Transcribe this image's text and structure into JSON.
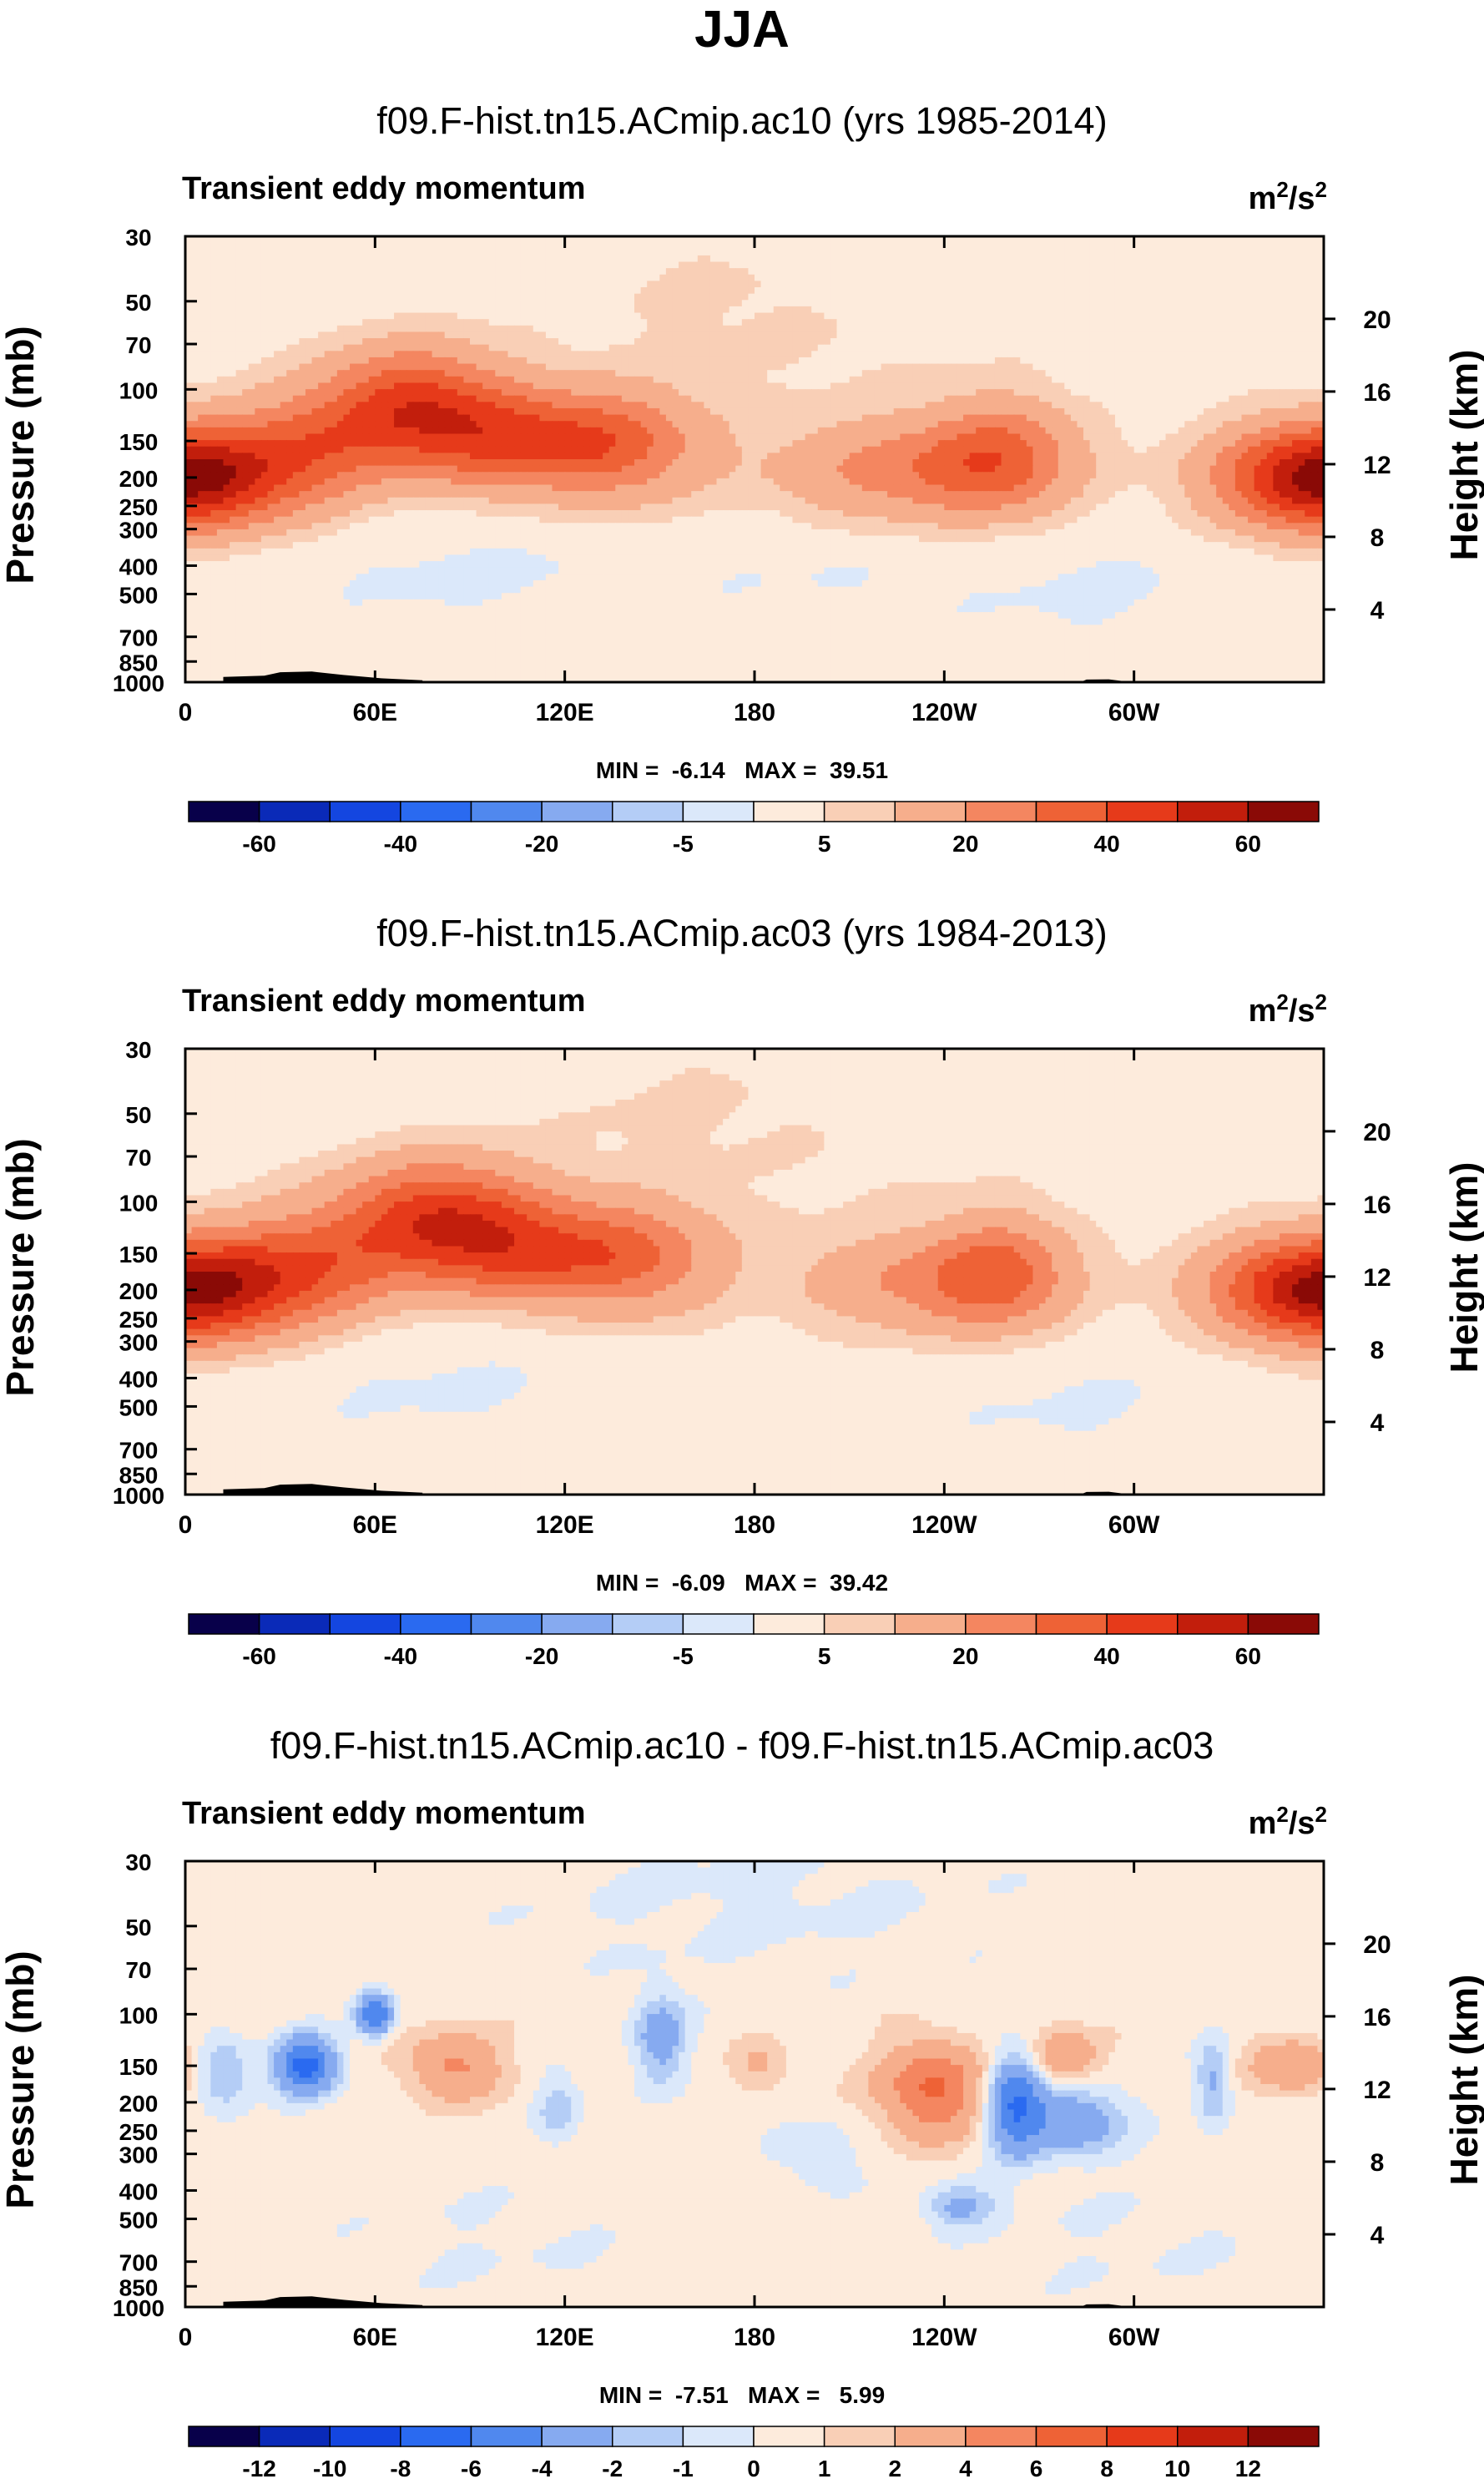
{
  "figure": {
    "season_title": "JJA"
  },
  "palette": {
    "full": [
      "#08004a",
      "#0a2ab8",
      "#1446e0",
      "#2a6af0",
      "#5088ee",
      "#86aaf0",
      "#b4cdf6",
      "#dbe8fa",
      "#fdebdc",
      "#f9cfb6",
      "#f6ae8c",
      "#f48660",
      "#ee6236",
      "#e63a1a",
      "#c21e0c",
      "#8a0a06"
    ],
    "diff": [
      "#08004a",
      "#0a2ab8",
      "#1446e0",
      "#2a6af0",
      "#5088ee",
      "#86aaf0",
      "#b4cdf6",
      "#dbe8fa",
      "#fdebdc",
      "#f9cfb6",
      "#f6ae8c",
      "#f48660",
      "#ee6236",
      "#e63a1a",
      "#c21e0c",
      "#8a0a06"
    ],
    "topography": "#000000"
  },
  "chart_data": [
    {
      "id": "panel1",
      "type": "heatmap",
      "title": "f09.F-hist.tn15.ACmip.ac10 (yrs 1985-2014)",
      "subtitle_left": "Transient eddy momentum",
      "units_base": "m",
      "units_sup1": "2",
      "units_mid": "/s",
      "units_sup2": "2",
      "ylabel": "Pressure (mb)",
      "y2label": "Height (km)",
      "xticks": [
        "0",
        "60E",
        "120E",
        "180",
        "120W",
        "60W"
      ],
      "xtick_lons": [
        0,
        60,
        120,
        180,
        240,
        300
      ],
      "xlim": [
        0,
        360
      ],
      "yticks": [
        "30",
        "50",
        "70",
        "100",
        "150",
        "200",
        "250",
        "300",
        "400",
        "500",
        "700",
        "850",
        "1000"
      ],
      "ytick_values": [
        30,
        50,
        70,
        100,
        150,
        200,
        250,
        300,
        400,
        500,
        700,
        850,
        1000
      ],
      "ylim": [
        1000,
        30
      ],
      "y2ticks": [
        "20",
        "16",
        "12",
        "8",
        "4"
      ],
      "y2tick_values": [
        20,
        16,
        12,
        8,
        4
      ],
      "stats": "MIN =  -6.14   MAX =  39.51",
      "min": -6.14,
      "max": 39.51,
      "levels": [
        -60,
        -50,
        -40,
        -30,
        -20,
        -10,
        -5,
        0,
        5,
        10,
        20,
        30,
        40,
        50,
        60
      ],
      "colorbar_labels": [
        "-60",
        "-40",
        "-20",
        "-5",
        "5",
        "20",
        "40",
        "60"
      ],
      "colorbar_label_levels": [
        -60,
        -40,
        -20,
        -5,
        5,
        20,
        40,
        60
      ],
      "features": [
        {
          "lon": 0,
          "p": 200,
          "amp": 32,
          "slon": 22,
          "sp": 0.28
        },
        {
          "lon": 360,
          "p": 200,
          "amp": 32,
          "slon": 22,
          "sp": 0.28
        },
        {
          "lon": 40,
          "p": 160,
          "amp": 24,
          "slon": 18,
          "sp": 0.3
        },
        {
          "lon": 72,
          "p": 110,
          "amp": 36,
          "slon": 20,
          "sp": 0.3
        },
        {
          "lon": 108,
          "p": 150,
          "amp": 38,
          "slon": 28,
          "sp": 0.27
        },
        {
          "lon": 140,
          "p": 160,
          "amp": 14,
          "slon": 18,
          "sp": 0.33
        },
        {
          "lon": 228,
          "p": 190,
          "amp": 22,
          "slon": 28,
          "sp": 0.27
        },
        {
          "lon": 258,
          "p": 170,
          "amp": 26,
          "slon": 16,
          "sp": 0.3
        },
        {
          "lon": 160,
          "p": 45,
          "amp": 2.8,
          "slon": 34,
          "sp": 0.5
        },
        {
          "lon": 220,
          "p": 60,
          "amp": 2.4,
          "slon": 40,
          "sp": 0.6
        },
        {
          "lon": 90,
          "p": 420,
          "amp": -3.2,
          "slon": 50,
          "sp": 0.35
        },
        {
          "lon": 290,
          "p": 500,
          "amp": -3.0,
          "slon": 40,
          "sp": 0.4
        },
        {
          "lon": 200,
          "p": 420,
          "amp": -2.0,
          "slon": 30,
          "sp": 0.3
        },
        {
          "lon": 260,
          "p": 40,
          "amp": -2.5,
          "slon": 60,
          "sp": 0.35
        }
      ],
      "base": 2.5
    },
    {
      "id": "panel2",
      "type": "heatmap",
      "title": "f09.F-hist.tn15.ACmip.ac03 (yrs 1984-2013)",
      "subtitle_left": "Transient eddy momentum",
      "units_base": "m",
      "units_sup1": "2",
      "units_mid": "/s",
      "units_sup2": "2",
      "ylabel": "Pressure (mb)",
      "y2label": "Height (km)",
      "xticks": [
        "0",
        "60E",
        "120E",
        "180",
        "120W",
        "60W"
      ],
      "xtick_lons": [
        0,
        60,
        120,
        180,
        240,
        300
      ],
      "xlim": [
        0,
        360
      ],
      "yticks": [
        "30",
        "50",
        "70",
        "100",
        "150",
        "200",
        "250",
        "300",
        "400",
        "500",
        "700",
        "850",
        "1000"
      ],
      "ytick_values": [
        30,
        50,
        70,
        100,
        150,
        200,
        250,
        300,
        400,
        500,
        700,
        850,
        1000
      ],
      "ylim": [
        1000,
        30
      ],
      "y2ticks": [
        "20",
        "16",
        "12",
        "8",
        "4"
      ],
      "y2tick_values": [
        20,
        16,
        12,
        8,
        4
      ],
      "stats": "MIN =  -6.09   MAX =  39.42",
      "min": -6.09,
      "max": 39.42,
      "levels": [
        -60,
        -50,
        -40,
        -30,
        -20,
        -10,
        -5,
        0,
        5,
        10,
        20,
        30,
        40,
        50,
        60
      ],
      "colorbar_labels": [
        "-60",
        "-40",
        "-20",
        "-5",
        "5",
        "20",
        "40",
        "60"
      ],
      "colorbar_label_levels": [
        -60,
        -40,
        -20,
        -5,
        5,
        20,
        40,
        60
      ],
      "features": [
        {
          "lon": 0,
          "p": 200,
          "amp": 32,
          "slon": 24,
          "sp": 0.28
        },
        {
          "lon": 360,
          "p": 200,
          "amp": 30,
          "slon": 22,
          "sp": 0.28
        },
        {
          "lon": 40,
          "p": 165,
          "amp": 26,
          "slon": 20,
          "sp": 0.3
        },
        {
          "lon": 80,
          "p": 110,
          "amp": 38,
          "slon": 22,
          "sp": 0.3
        },
        {
          "lon": 112,
          "p": 150,
          "amp": 34,
          "slon": 28,
          "sp": 0.27
        },
        {
          "lon": 145,
          "p": 160,
          "amp": 14,
          "slon": 18,
          "sp": 0.33
        },
        {
          "lon": 232,
          "p": 190,
          "amp": 18,
          "slon": 26,
          "sp": 0.27
        },
        {
          "lon": 258,
          "p": 175,
          "amp": 26,
          "slon": 15,
          "sp": 0.3
        },
        {
          "lon": 150,
          "p": 45,
          "amp": 2.8,
          "slon": 34,
          "sp": 0.5
        },
        {
          "lon": 220,
          "p": 55,
          "amp": 2.4,
          "slon": 40,
          "sp": 0.6
        },
        {
          "lon": 80,
          "p": 420,
          "amp": -3.0,
          "slon": 45,
          "sp": 0.35
        },
        {
          "lon": 280,
          "p": 500,
          "amp": -2.8,
          "slon": 40,
          "sp": 0.4
        },
        {
          "lon": 270,
          "p": 40,
          "amp": -2.5,
          "slon": 60,
          "sp": 0.35
        }
      ],
      "base": 2.5
    },
    {
      "id": "panel3",
      "type": "heatmap",
      "title": "f09.F-hist.tn15.ACmip.ac10 - f09.F-hist.tn15.ACmip.ac03",
      "subtitle_left": "Transient eddy momentum",
      "units_base": "m",
      "units_sup1": "2",
      "units_mid": "/s",
      "units_sup2": "2",
      "ylabel": "Pressure (mb)",
      "y2label": "Height (km)",
      "xticks": [
        "0",
        "60E",
        "120E",
        "180",
        "120W",
        "60W"
      ],
      "xtick_lons": [
        0,
        60,
        120,
        180,
        240,
        300
      ],
      "xlim": [
        0,
        360
      ],
      "yticks": [
        "30",
        "50",
        "70",
        "100",
        "150",
        "200",
        "250",
        "300",
        "400",
        "500",
        "700",
        "850",
        "1000"
      ],
      "ytick_values": [
        30,
        50,
        70,
        100,
        150,
        200,
        250,
        300,
        400,
        500,
        700,
        850,
        1000
      ],
      "ylim": [
        1000,
        30
      ],
      "y2ticks": [
        "20",
        "16",
        "12",
        "8",
        "4"
      ],
      "y2tick_values": [
        20,
        16,
        12,
        8,
        4
      ],
      "stats": "MIN =  -7.51   MAX =   5.99",
      "min": -7.51,
      "max": 5.99,
      "levels": [
        -12,
        -10,
        -8,
        -6,
        -4,
        -2,
        -1,
        0,
        1,
        2,
        4,
        6,
        8,
        10,
        12
      ],
      "colorbar_labels": [
        "-12",
        "-10",
        "-8",
        "-6",
        "-4",
        "-2",
        "-1",
        "0",
        "1",
        "2",
        "4",
        "6",
        "8",
        "10",
        "12"
      ],
      "colorbar_label_levels": [
        -12,
        -10,
        -8,
        -6,
        -4,
        -2,
        -1,
        0,
        1,
        2,
        4,
        6,
        8,
        10,
        12
      ],
      "features": [
        {
          "lon": 12,
          "p": 160,
          "amp": -3.0,
          "slon": 6,
          "sp": 0.2
        },
        {
          "lon": 38,
          "p": 150,
          "amp": -7.5,
          "slon": 7,
          "sp": 0.16
        },
        {
          "lon": 60,
          "p": 100,
          "amp": -6.5,
          "slon": 4,
          "sp": 0.12
        },
        {
          "lon": 85,
          "p": 150,
          "amp": 3.8,
          "slon": 10,
          "sp": 0.18
        },
        {
          "lon": 118,
          "p": 210,
          "amp": -2.2,
          "slon": 5,
          "sp": 0.2
        },
        {
          "lon": 150,
          "p": 120,
          "amp": -3.6,
          "slon": 6,
          "sp": 0.25
        },
        {
          "lon": 182,
          "p": 150,
          "amp": 1.8,
          "slon": 6,
          "sp": 0.12
        },
        {
          "lon": 236,
          "p": 180,
          "amp": 5.8,
          "slon": 11,
          "sp": 0.25
        },
        {
          "lon": 262,
          "p": 200,
          "amp": -6.0,
          "slon": 6,
          "sp": 0.28
        },
        {
          "lon": 280,
          "p": 230,
          "amp": -4.2,
          "slon": 12,
          "sp": 0.2
        },
        {
          "lon": 278,
          "p": 140,
          "amp": 3.6,
          "slon": 7,
          "sp": 0.15
        },
        {
          "lon": 325,
          "p": 170,
          "amp": -3.0,
          "slon": 4,
          "sp": 0.25
        },
        {
          "lon": 350,
          "p": 150,
          "amp": 3.4,
          "slon": 9,
          "sp": 0.15
        },
        {
          "lon": 200,
          "p": 300,
          "amp": -1.5,
          "slon": 10,
          "sp": 0.2
        },
        {
          "lon": 245,
          "p": 450,
          "amp": -3.0,
          "slon": 8,
          "sp": 0.12
        },
        {
          "lon": 100,
          "p": 600,
          "amp": -0.6,
          "slon": 40,
          "sp": 0.4
        },
        {
          "lon": 300,
          "p": 600,
          "amp": -0.6,
          "slon": 40,
          "sp": 0.4
        },
        {
          "lon": 180,
          "p": 40,
          "amp": -0.8,
          "slon": 60,
          "sp": 0.5
        }
      ],
      "base": 0.6
    }
  ]
}
